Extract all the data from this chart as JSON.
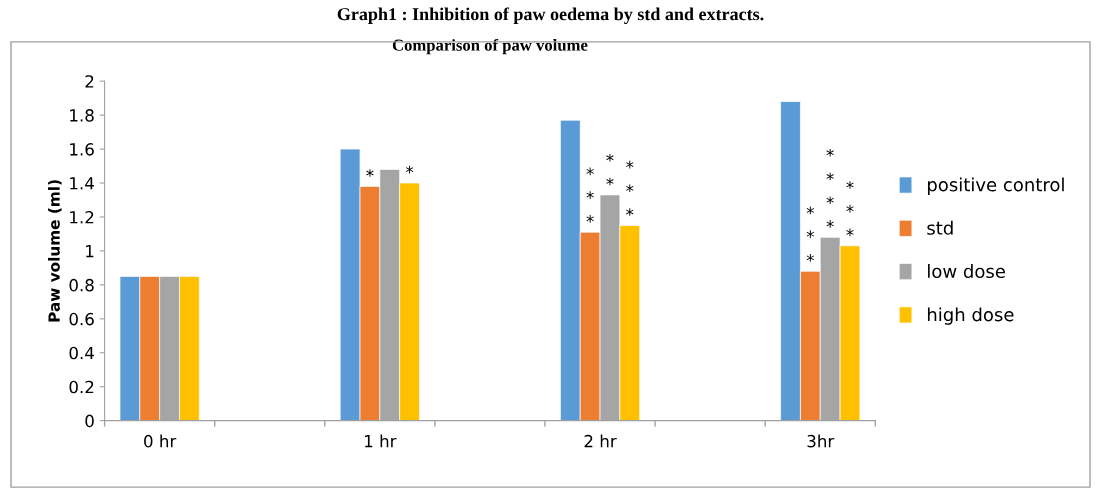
{
  "chart_data": {
    "type": "bar",
    "title": "Comparison of paw volume",
    "ylabel": "Paw volume (ml)",
    "annotations": [
      "Graph1 : Inhibition of paw oedema by std and extracts."
    ],
    "categories": [
      "0 hr",
      null,
      "1 hr",
      null,
      "2 hr",
      null,
      "3hr"
    ],
    "series": [
      {
        "name": "positive control",
        "color": "#5b9bd5",
        "values": [
          0.85,
          null,
          1.6,
          null,
          1.77,
          null,
          1.88
        ]
      },
      {
        "name": "std",
        "color": "#ed7d31",
        "values": [
          0.85,
          null,
          1.38,
          null,
          1.11,
          null,
          0.88
        ],
        "value_labels": [
          null,
          null,
          "*",
          null,
          "*\n*\n*",
          null,
          "*\n*\n*"
        ]
      },
      {
        "name": "low dose",
        "color": "#a5a5a5",
        "values": [
          0.85,
          null,
          1.48,
          null,
          1.33,
          null,
          1.08
        ],
        "value_labels": [
          null,
          null,
          null,
          null,
          "*\n*",
          null,
          "*\n*\n*\n*"
        ]
      },
      {
        "name": "high dose",
        "color": "#ffc000",
        "values": [
          0.85,
          null,
          1.4,
          null,
          1.15,
          null,
          1.03
        ],
        "value_labels": [
          null,
          null,
          "*",
          null,
          "*\n*\n*",
          null,
          "*\n*\n*"
        ]
      }
    ],
    "ylim": [
      0,
      2
    ],
    "yticks": [
      0,
      0.2,
      0.4,
      0.6,
      0.8,
      1,
      1.2,
      1.4,
      1.6,
      1.8,
      2
    ],
    "grid": false,
    "legend": "right"
  }
}
